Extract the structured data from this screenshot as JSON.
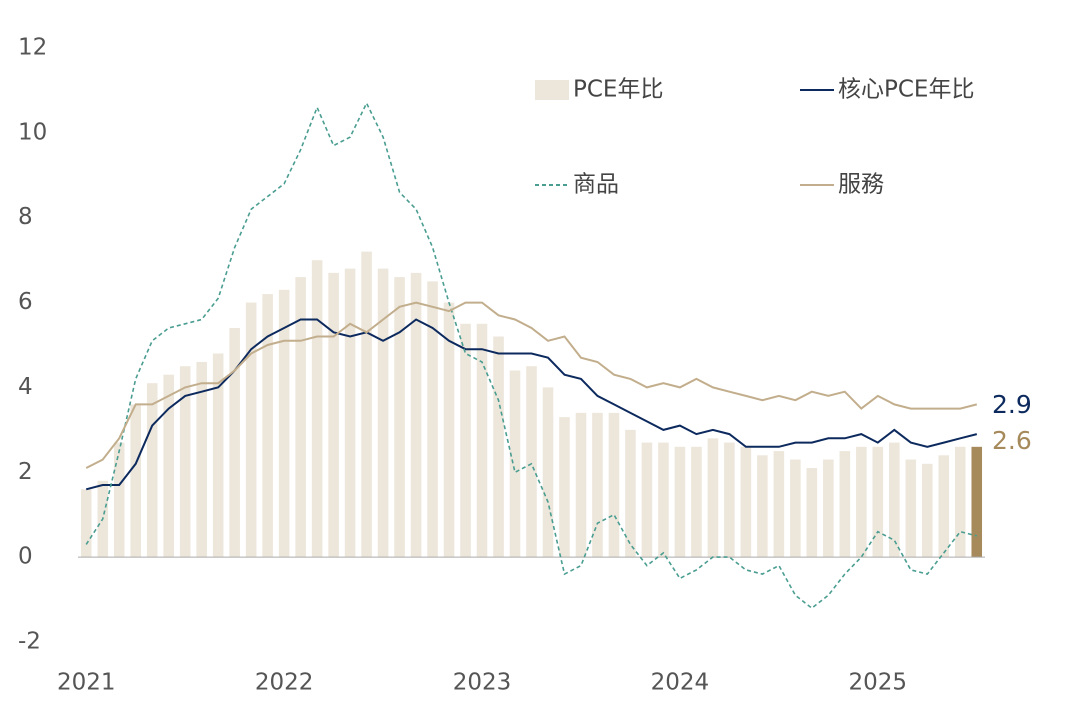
{
  "chart_data": {
    "type": "bar",
    "categories": [
      "2021",
      null,
      null,
      null,
      null,
      null,
      null,
      null,
      null,
      null,
      null,
      null,
      "2022",
      null,
      null,
      null,
      null,
      null,
      null,
      null,
      null,
      null,
      null,
      null,
      "2023",
      null,
      null,
      null,
      null,
      null,
      null,
      null,
      null,
      null,
      null,
      null,
      "2024",
      null,
      null,
      null,
      null,
      null,
      null,
      null,
      null,
      null,
      null,
      null,
      "2025",
      null,
      null,
      null,
      null,
      null,
      null
    ],
    "ylim": [
      -2,
      12
    ],
    "yticks": [
      -2,
      0,
      2,
      4,
      6,
      8,
      10,
      12
    ],
    "grid": false,
    "legend": "upper right",
    "series": [
      {
        "name": "PCE年比",
        "type": "bar",
        "color": "#ede6db",
        "highlight_color": "#a68a5c",
        "end_label": "2.6",
        "values": [
          1.6,
          1.8,
          2.7,
          3.6,
          4.1,
          4.3,
          4.5,
          4.6,
          4.8,
          5.4,
          6.0,
          6.2,
          6.3,
          6.6,
          7.0,
          6.7,
          6.8,
          7.2,
          6.8,
          6.6,
          6.7,
          6.5,
          6.0,
          5.5,
          5.5,
          5.2,
          4.4,
          4.5,
          4.0,
          3.3,
          3.4,
          3.4,
          3.4,
          3.0,
          2.7,
          2.7,
          2.6,
          2.6,
          2.8,
          2.7,
          2.6,
          2.4,
          2.5,
          2.3,
          2.1,
          2.3,
          2.5,
          2.6,
          2.6,
          2.7,
          2.3,
          2.2,
          2.4,
          2.6,
          2.6
        ]
      },
      {
        "name": "核心PCE年比",
        "type": "line",
        "color": "#0d2a5e",
        "end_label": "2.9",
        "values": [
          1.6,
          1.7,
          1.7,
          2.2,
          3.1,
          3.5,
          3.8,
          3.9,
          4.0,
          4.4,
          4.9,
          5.2,
          5.4,
          5.6,
          5.6,
          5.3,
          5.2,
          5.3,
          5.1,
          5.3,
          5.6,
          5.4,
          5.1,
          4.9,
          4.9,
          4.8,
          4.8,
          4.8,
          4.7,
          4.3,
          4.2,
          3.8,
          3.6,
          3.4,
          3.2,
          3.0,
          3.1,
          2.9,
          3.0,
          2.9,
          2.6,
          2.6,
          2.6,
          2.7,
          2.7,
          2.8,
          2.8,
          2.9,
          2.7,
          3.0,
          2.7,
          2.6,
          2.7,
          2.8,
          2.9
        ]
      },
      {
        "name": "商品",
        "type": "line",
        "dashed": true,
        "color": "#4a9d91",
        "values": [
          0.3,
          0.9,
          2.5,
          4.2,
          5.1,
          5.4,
          5.5,
          5.6,
          6.1,
          7.3,
          8.2,
          8.5,
          8.8,
          9.6,
          10.6,
          9.7,
          9.9,
          10.7,
          9.9,
          8.6,
          8.2,
          7.3,
          6.0,
          4.8,
          4.6,
          3.7,
          2.0,
          2.2,
          1.3,
          -0.4,
          -0.2,
          0.8,
          1.0,
          0.3,
          -0.2,
          0.1,
          -0.5,
          -0.3,
          0.0,
          0.0,
          -0.3,
          -0.4,
          -0.2,
          -0.9,
          -1.2,
          -0.9,
          -0.4,
          0.0,
          0.6,
          0.4,
          -0.3,
          -0.4,
          0.1,
          0.6,
          0.5
        ]
      },
      {
        "name": "服務",
        "type": "line",
        "color": "#c2ae8c",
        "values": [
          2.1,
          2.3,
          2.8,
          3.6,
          3.6,
          3.8,
          4.0,
          4.1,
          4.1,
          4.4,
          4.8,
          5.0,
          5.1,
          5.1,
          5.2,
          5.2,
          5.5,
          5.3,
          5.6,
          5.9,
          6.0,
          5.9,
          5.8,
          6.0,
          6.0,
          5.7,
          5.6,
          5.4,
          5.1,
          5.2,
          4.7,
          4.6,
          4.3,
          4.2,
          4.0,
          4.1,
          4.0,
          4.2,
          4.0,
          3.9,
          3.8,
          3.7,
          3.8,
          3.7,
          3.9,
          3.8,
          3.9,
          3.5,
          3.8,
          3.6,
          3.5,
          3.5,
          3.5,
          3.5,
          3.6
        ]
      }
    ]
  }
}
